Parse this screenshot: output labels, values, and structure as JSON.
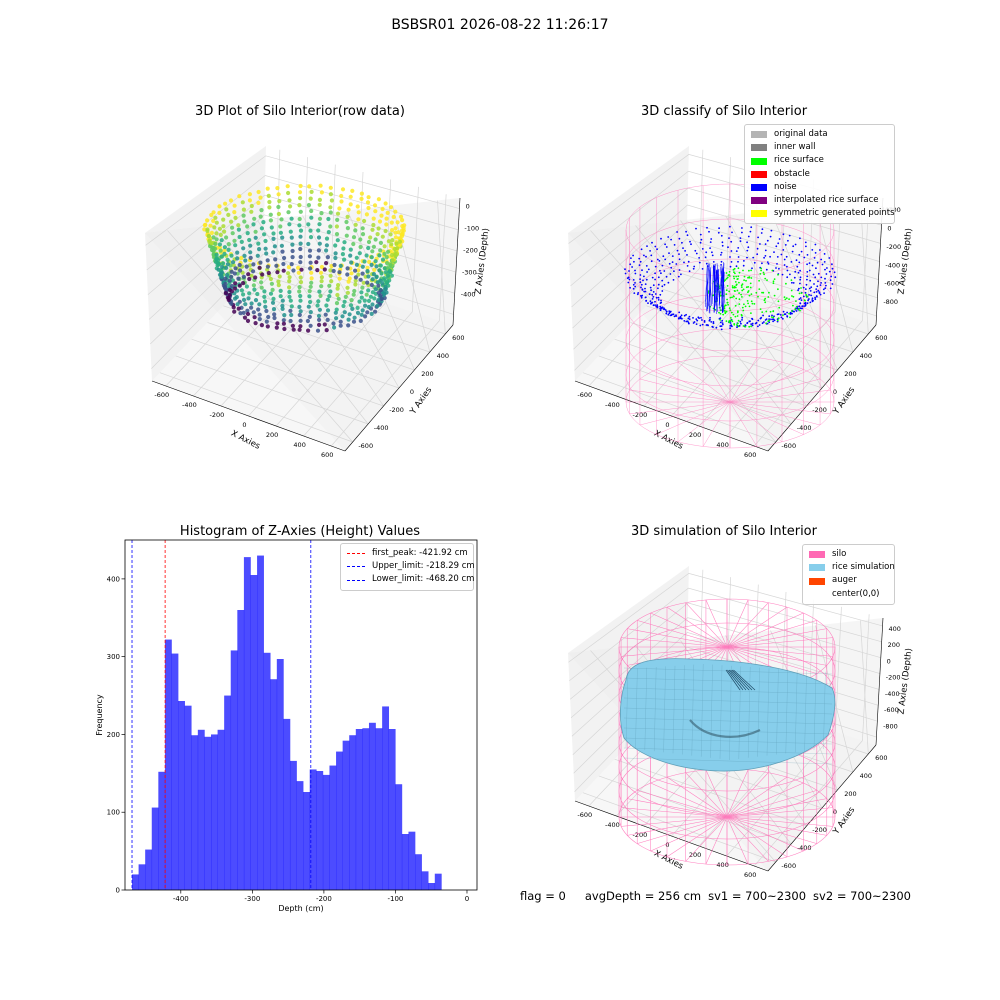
{
  "suptitle": "BSBSR01 2026-08-22 11:26:17",
  "status": {
    "flag": "flag = 0",
    "avg_depth": "avgDepth = 256 cm",
    "sv1": "sv1 = 700~2300",
    "sv2": "sv2 = 700~2300"
  },
  "panels": {
    "raw": {
      "title": "3D Plot of Silo Interior(row data)",
      "xlabel": "X Axies",
      "ylabel": "Y Axies",
      "zlabel": "Z Axies (Depth)",
      "xticks": [
        "-600",
        "-400",
        "-200",
        "0",
        "200",
        "400",
        "600"
      ],
      "yticks": [
        "-600",
        "-400",
        "-200",
        "0",
        "200",
        "400",
        "600"
      ],
      "zticks": [
        "0",
        "-100",
        "-200",
        "-300",
        "-400"
      ]
    },
    "classify": {
      "title": "3D classify of Silo Interior",
      "xlabel": "X Axies",
      "ylabel": "Y Axies",
      "zlabel": "Z Axies (Depth)",
      "xticks": [
        "-600",
        "-400",
        "-200",
        "0",
        "200",
        "400",
        "600"
      ],
      "yticks": [
        "-600",
        "-400",
        "-200",
        "0",
        "200",
        "400",
        "600"
      ],
      "zticks": [
        "200",
        "0",
        "-200",
        "-400",
        "-600",
        "-800"
      ],
      "ztick_top": "400",
      "legend": [
        {
          "label": "original data",
          "color": "#b4b4b4"
        },
        {
          "label": "inner wall",
          "color": "#808080"
        },
        {
          "label": "rice surface",
          "color": "#00ff00"
        },
        {
          "label": "obstacle",
          "color": "#ff0000"
        },
        {
          "label": "noise",
          "color": "#0000ff"
        },
        {
          "label": "interpolated rice surface",
          "color": "#800080"
        },
        {
          "label": "symmetric generated points",
          "color": "#ffff00"
        }
      ]
    },
    "simulation": {
      "title": "3D simulation of Silo Interior",
      "xlabel": "X Axies",
      "ylabel": "Y Axies",
      "zlabel": "Z Axies (Depth)",
      "xticks": [
        "-600",
        "-400",
        "-200",
        "0",
        "200",
        "400",
        "600"
      ],
      "yticks": [
        "-600",
        "-400",
        "-200",
        "0",
        "200",
        "400",
        "600"
      ],
      "zticks": [
        "400",
        "200",
        "0",
        "-200",
        "-400",
        "-600",
        "-800"
      ],
      "legend": [
        {
          "label": "silo",
          "color": "#ff69b4"
        },
        {
          "label": "rice simulation",
          "color": "#87ceeb"
        },
        {
          "label": "auger",
          "color": "#ff4500"
        },
        {
          "label": "center(0,0)",
          "color": "#ffffff"
        }
      ]
    }
  },
  "chart_data": [
    {
      "type": "bar",
      "title": "Histogram of Z-Axies (Height) Values",
      "xlabel": "Depth (cm)",
      "ylabel": "Frequency",
      "xlim": [
        -478,
        14
      ],
      "ylim": [
        0,
        450
      ],
      "xticks": [
        -400,
        -300,
        -200,
        -100,
        0
      ],
      "yticks": [
        0,
        100,
        200,
        300,
        400
      ],
      "bar_color": "#0000ff",
      "bin_width": 9.2,
      "bin_start": -468.2,
      "values": [
        20,
        33,
        52,
        106,
        152,
        322,
        304,
        243,
        237,
        199,
        206,
        197,
        200,
        206,
        250,
        308,
        360,
        428,
        405,
        430,
        305,
        271,
        297,
        220,
        166,
        140,
        126,
        155,
        153,
        148,
        160,
        178,
        192,
        199,
        207,
        208,
        215,
        208,
        236,
        207,
        136,
        72,
        75,
        46,
        24,
        9,
        21
      ],
      "vlines": [
        {
          "label": "first_peak: -421.92 cm",
          "x": -421.92,
          "color": "#ff0000"
        },
        {
          "label": "Upper_limit: -218.29 cm",
          "x": -218.29,
          "color": "#0000ff"
        },
        {
          "label": "Lower_limit: -468.20 cm",
          "x": -468.2,
          "color": "#0000ff"
        }
      ],
      "legend_position": "top-right"
    }
  ]
}
